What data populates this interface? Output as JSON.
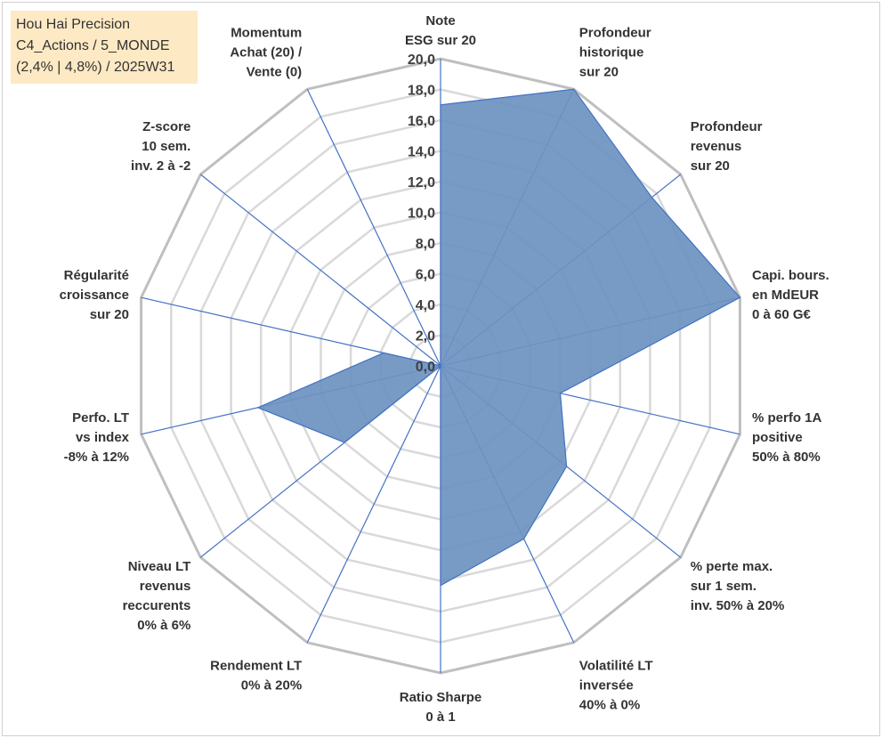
{
  "title_box": {
    "lines": [
      "Hou Hai Precision",
      "C4_Actions / 5_MONDE",
      "(2,4% | 4,8%) / 2025W31"
    ]
  },
  "chart_data": {
    "type": "radar",
    "radial_range": [
      0,
      20
    ],
    "tick_values": [
      0,
      2,
      4,
      6,
      8,
      10,
      12,
      14,
      16,
      18,
      20
    ],
    "tick_labels": [
      "0,0",
      "2,0",
      "4,0",
      "6,0",
      "8,0",
      "10,0",
      "12,0",
      "14,0",
      "16,0",
      "18,0",
      "20,0"
    ],
    "axes": [
      {
        "lines": [
          "Note",
          "ESG sur 20"
        ],
        "value": 17.0
      },
      {
        "lines": [
          "Profondeur",
          "historique",
          "sur 20"
        ],
        "value": 20.0
      },
      {
        "lines": [
          "Profondeur",
          "revenus",
          "sur 20"
        ],
        "value": 17.6
      },
      {
        "lines": [
          "Capi. bours.",
          "en MdEUR",
          "0 à 60 G€"
        ],
        "value": 20.0
      },
      {
        "lines": [
          "% perfo 1A",
          "positive",
          "50% à 80%"
        ],
        "value": 8.0
      },
      {
        "lines": [
          "% perte max.",
          "sur 1 sem.",
          "inv. 50% à 20%"
        ],
        "value": 10.5
      },
      {
        "lines": [
          "Volatilité LT",
          "inversée",
          "40% à 0%"
        ],
        "value": 12.5
      },
      {
        "lines": [
          "Ratio Sharpe",
          "0 à 1"
        ],
        "value": 14.3
      },
      {
        "lines": [
          "Rendement LT",
          "0% à 20%"
        ],
        "value": 0.0
      },
      {
        "lines": [
          "Niveau LT",
          "revenus",
          "reccurents",
          "0% à 6%"
        ],
        "value": 8.0
      },
      {
        "lines": [
          "Perfo. LT",
          "vs index",
          "-8% à 12%"
        ],
        "value": 12.2
      },
      {
        "lines": [
          "Régularité",
          "croissance",
          "sur 20"
        ],
        "value": 3.8
      },
      {
        "lines": [
          "Z-score",
          "10 sem.",
          "inv. 2 à -2"
        ],
        "value": 0.0
      },
      {
        "lines": [
          "Momentum",
          "Achat (20) /",
          "Vente (0)"
        ],
        "value": 0.0
      }
    ],
    "colors": {
      "fill": "#6d93c0",
      "stroke": "#4472c4",
      "spokes": "#4472c4",
      "grid": "#d9d9d9",
      "outer_grid": "#bfbfbf"
    }
  }
}
